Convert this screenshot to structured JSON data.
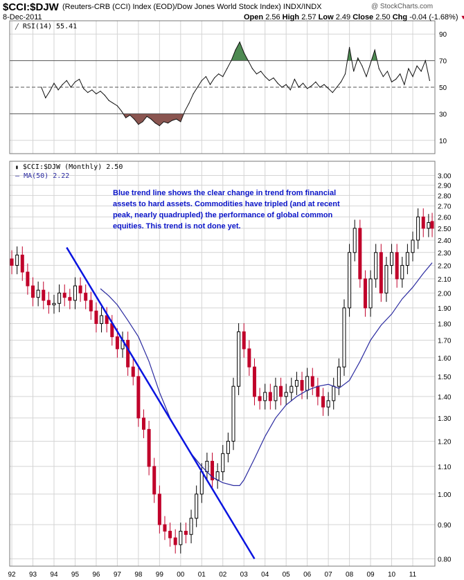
{
  "header": {
    "symbol": "$CCI:$DJW",
    "description": "(Reuters-CRB (CCI) Index (EOD)/Dow Jones World Stock Index)  INDX/INDX",
    "date": "8-Dec-2011",
    "open_label": "Open",
    "open": "2.56",
    "high_label": "High",
    "high": "2.57",
    "low_label": "Low",
    "low": "2.49",
    "close_label": "Close",
    "close": "2.50",
    "chg_label": "Chg",
    "chg": "-0.04 (-1.68%)",
    "watermark": "@ StockCharts.com"
  },
  "colors": {
    "up": "#000000",
    "down": "#c0002a",
    "trend": "#0a14e0",
    "ma": "#2a2aa0",
    "rsi_above": "#4e8a52",
    "rsi_below": "#8a5550",
    "grid": "#d4d4d4"
  },
  "chart_data": [
    {
      "type": "line",
      "name": "rsi-panel",
      "legend": "RSI(14) 55.41",
      "ylim": [
        0,
        100
      ],
      "yticks": [
        10,
        30,
        50,
        70,
        90
      ],
      "ref_lines": [
        30,
        50,
        70
      ],
      "x": [
        1993.4,
        1993.6,
        1993.8,
        1994.0,
        1994.2,
        1994.4,
        1994.6,
        1994.8,
        1995.0,
        1995.2,
        1995.4,
        1995.6,
        1995.8,
        1996.0,
        1996.2,
        1996.4,
        1996.6,
        1996.8,
        1997.0,
        1997.2,
        1997.4,
        1997.6,
        1997.8,
        1998.0,
        1998.2,
        1998.4,
        1998.6,
        1998.8,
        1999.0,
        1999.2,
        1999.4,
        1999.6,
        1999.8,
        2000.0,
        2000.2,
        2000.4,
        2000.6,
        2000.8,
        2001.0,
        2001.2,
        2001.4,
        2001.6,
        2001.8,
        2002.0,
        2002.2,
        2002.4,
        2002.6,
        2002.8,
        2003.0,
        2003.2,
        2003.4,
        2003.6,
        2003.8,
        2004.0,
        2004.2,
        2004.4,
        2004.6,
        2004.8,
        2005.0,
        2005.2,
        2005.4,
        2005.6,
        2005.8,
        2006.0,
        2006.2,
        2006.4,
        2006.6,
        2006.8,
        2007.0,
        2007.2,
        2007.4,
        2007.6,
        2007.8,
        2008.0,
        2008.2,
        2008.4,
        2008.6,
        2008.8,
        2009.0,
        2009.2,
        2009.4,
        2009.6,
        2009.8,
        2010.0,
        2010.2,
        2010.4,
        2010.6,
        2010.8,
        2011.0,
        2011.2,
        2011.4,
        2011.6,
        2011.8
      ],
      "values": [
        50,
        42,
        47,
        53,
        48,
        52,
        55,
        50,
        54,
        56,
        49,
        46,
        48,
        45,
        47,
        44,
        40,
        38,
        36,
        32,
        27,
        29,
        26,
        22,
        24,
        28,
        26,
        23,
        21,
        24,
        23,
        25,
        26,
        24,
        32,
        38,
        45,
        50,
        55,
        58,
        52,
        57,
        60,
        58,
        64,
        70,
        78,
        84,
        76,
        70,
        64,
        60,
        62,
        58,
        55,
        57,
        53,
        50,
        52,
        48,
        56,
        50,
        53,
        49,
        51,
        54,
        50,
        52,
        49,
        46,
        50,
        54,
        60,
        80,
        62,
        72,
        66,
        58,
        68,
        78,
        64,
        58,
        62,
        54,
        56,
        60,
        52,
        64,
        58,
        66,
        62,
        70,
        55
      ]
    },
    {
      "type": "candlestick",
      "name": "price-panel",
      "legend": "$CCI:$DJW (Monthly) 2.50",
      "ylim": [
        0.78,
        3.15
      ],
      "log_scale": true,
      "yticks": [
        0.8,
        0.9,
        1.0,
        1.1,
        1.2,
        1.3,
        1.4,
        1.5,
        1.6,
        1.7,
        1.8,
        1.9,
        2.0,
        2.1,
        2.2,
        2.3,
        2.4,
        2.5,
        2.6,
        2.7,
        2.8,
        2.9,
        3.0
      ],
      "xticks": [
        "92",
        "93",
        "94",
        "95",
        "96",
        "97",
        "98",
        "99",
        "00",
        "01",
        "02",
        "03",
        "04",
        "05",
        "06",
        "07",
        "08",
        "09",
        "10",
        "11"
      ],
      "x": [
        1992.0,
        1992.25,
        1992.5,
        1992.75,
        1993.0,
        1993.25,
        1993.5,
        1993.75,
        1994.0,
        1994.25,
        1994.5,
        1994.75,
        1995.0,
        1995.25,
        1995.5,
        1995.75,
        1996.0,
        1996.25,
        1996.5,
        1996.75,
        1997.0,
        1997.25,
        1997.5,
        1997.75,
        1998.0,
        1998.25,
        1998.5,
        1998.75,
        1999.0,
        1999.25,
        1999.5,
        1999.75,
        2000.0,
        2000.25,
        2000.5,
        2000.75,
        2001.0,
        2001.25,
        2001.5,
        2001.75,
        2002.0,
        2002.25,
        2002.5,
        2002.75,
        2003.0,
        2003.25,
        2003.5,
        2003.75,
        2004.0,
        2004.25,
        2004.5,
        2004.75,
        2005.0,
        2005.25,
        2005.5,
        2005.75,
        2006.0,
        2006.25,
        2006.5,
        2006.75,
        2007.0,
        2007.25,
        2007.5,
        2007.75,
        2008.0,
        2008.25,
        2008.5,
        2008.75,
        2009.0,
        2009.25,
        2009.5,
        2009.75,
        2010.0,
        2010.25,
        2010.5,
        2010.75,
        2011.0,
        2011.25,
        2011.5,
        2011.75,
        2011.92
      ],
      "close": [
        2.2,
        2.28,
        2.15,
        2.05,
        1.97,
        2.02,
        1.95,
        1.92,
        1.93,
        2.0,
        1.97,
        1.95,
        2.05,
        2.0,
        1.95,
        1.88,
        1.8,
        1.85,
        1.8,
        1.72,
        1.65,
        1.7,
        1.55,
        1.5,
        1.3,
        1.25,
        1.1,
        1.0,
        0.9,
        0.88,
        0.86,
        0.84,
        0.88,
        0.87,
        0.92,
        1.0,
        1.08,
        1.12,
        1.05,
        1.08,
        1.15,
        1.2,
        1.45,
        1.75,
        1.65,
        1.55,
        1.4,
        1.38,
        1.42,
        1.38,
        1.45,
        1.4,
        1.42,
        1.45,
        1.48,
        1.43,
        1.5,
        1.45,
        1.4,
        1.35,
        1.38,
        1.45,
        1.55,
        1.9,
        2.3,
        2.5,
        2.1,
        1.9,
        2.1,
        2.3,
        2.0,
        2.2,
        2.3,
        2.1,
        2.2,
        2.3,
        2.4,
        2.6,
        2.5,
        2.55,
        2.5
      ],
      "open": [
        2.25,
        2.2,
        2.28,
        2.15,
        2.05,
        1.97,
        2.02,
        1.95,
        1.92,
        1.93,
        2.0,
        1.97,
        1.95,
        2.05,
        2.0,
        1.95,
        1.88,
        1.8,
        1.85,
        1.8,
        1.72,
        1.65,
        1.7,
        1.55,
        1.5,
        1.3,
        1.25,
        1.1,
        1.0,
        0.9,
        0.88,
        0.86,
        0.84,
        0.88,
        0.87,
        0.92,
        1.0,
        1.08,
        1.12,
        1.05,
        1.08,
        1.15,
        1.2,
        1.45,
        1.75,
        1.65,
        1.55,
        1.4,
        1.38,
        1.42,
        1.38,
        1.45,
        1.4,
        1.42,
        1.45,
        1.48,
        1.43,
        1.5,
        1.45,
        1.4,
        1.35,
        1.38,
        1.45,
        1.55,
        1.9,
        2.3,
        2.5,
        2.1,
        1.9,
        2.1,
        2.3,
        2.0,
        2.2,
        2.3,
        2.1,
        2.2,
        2.3,
        2.4,
        2.6,
        2.5,
        2.56
      ],
      "ma_legend": "MA(50) 2.22",
      "ma_x": [
        1996.2,
        1996.6,
        1997.0,
        1997.5,
        1998.0,
        1998.5,
        1999.0,
        1999.5,
        2000.0,
        2000.5,
        2001.0,
        2001.5,
        2002.0,
        2002.5,
        2002.8,
        2003.0,
        2003.5,
        2004.0,
        2004.5,
        2005.0,
        2005.5,
        2006.0,
        2006.5,
        2007.0,
        2007.5,
        2008.0,
        2008.5,
        2009.0,
        2009.5,
        2010.0,
        2010.5,
        2011.0,
        2011.5,
        2011.92
      ],
      "ma_values": [
        2.03,
        1.98,
        1.92,
        1.82,
        1.72,
        1.58,
        1.42,
        1.3,
        1.22,
        1.15,
        1.1,
        1.06,
        1.04,
        1.03,
        1.03,
        1.05,
        1.13,
        1.22,
        1.3,
        1.36,
        1.4,
        1.43,
        1.45,
        1.46,
        1.44,
        1.48,
        1.58,
        1.7,
        1.79,
        1.86,
        1.96,
        2.04,
        2.14,
        2.22
      ],
      "trend_line": {
        "x": [
          1994.6,
          2003.5
        ],
        "y": [
          2.34,
          0.8
        ]
      },
      "annotation": "Blue trend line shows the clear change in trend from financial assets to hard assets. Commodities have tripled (and at recent peak, nearly quadrupled) the performance of global common equities. This trend is not done yet."
    }
  ]
}
